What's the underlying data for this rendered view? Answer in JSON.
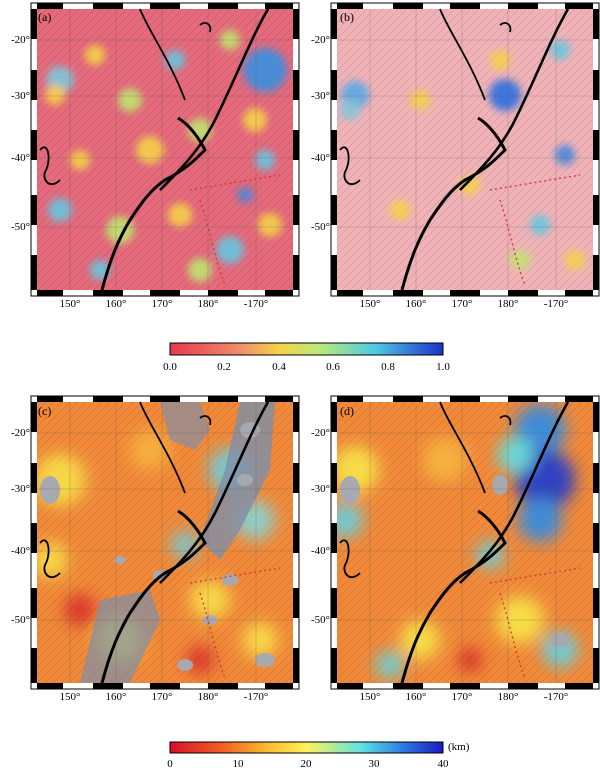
{
  "panels": [
    {
      "id": "a",
      "label": "(a)"
    },
    {
      "id": "b",
      "label": "(b)"
    },
    {
      "id": "c",
      "label": "(c)"
    },
    {
      "id": "d",
      "label": "(d)"
    }
  ],
  "lat_labels": [
    "-20°",
    "-30°",
    "-40°",
    "-50°"
  ],
  "lon_labels": [
    "150°",
    "160°",
    "170°",
    "180°",
    "-170°"
  ],
  "colorbar_top": {
    "ticks": [
      "0.0",
      "0.2",
      "0.4",
      "0.6",
      "0.8",
      "1.0"
    ],
    "colors": [
      "#e6394f",
      "#f0b94a",
      "#c8e86a",
      "#5fd6e0",
      "#2a4cd8"
    ]
  },
  "colorbar_bottom": {
    "ticks": [
      "0",
      "10",
      "20",
      "30",
      "40"
    ],
    "unit": "(km)",
    "colors": [
      "#d8102a",
      "#f6a22a",
      "#fff25a",
      "#44d2e6",
      "#1a2ad0"
    ]
  }
}
